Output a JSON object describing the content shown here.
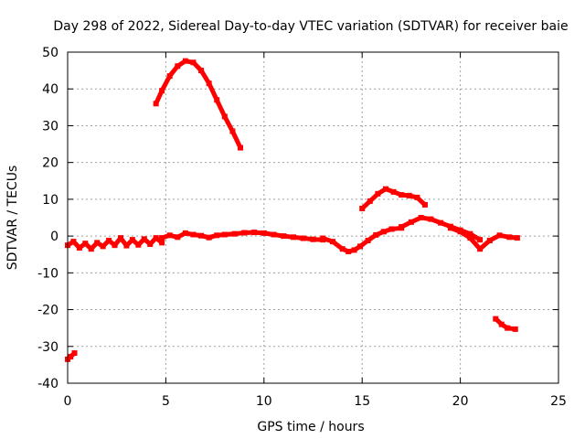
{
  "chart_data": {
    "type": "scatter",
    "title": "Day 298 of 2022, Sidereal Day-to-day VTEC variation (SDTVAR) for receiver baie",
    "xlabel": "GPS time / hours",
    "ylabel": "SDTVAR / TECUs",
    "xlim": [
      0,
      25
    ],
    "ylim": [
      -40,
      50
    ],
    "xticks": [
      0,
      5,
      10,
      15,
      20,
      25
    ],
    "yticks": [
      -40,
      -30,
      -20,
      -10,
      0,
      10,
      20,
      30,
      40,
      50
    ],
    "grid": true,
    "series_color": "#ff0000",
    "series": [
      {
        "name": "segment-early-negative",
        "x": [
          0.0,
          0.15,
          0.35
        ],
        "y": [
          -33.5,
          -32.8,
          -31.8
        ]
      },
      {
        "name": "segment-hump",
        "x": [
          4.5,
          4.8,
          5.2,
          5.6,
          6.0,
          6.4,
          6.8,
          7.2,
          7.6,
          8.0,
          8.4,
          8.8
        ],
        "y": [
          36,
          39.5,
          43.5,
          46.2,
          47.6,
          47.2,
          45,
          41.5,
          37,
          32.5,
          28.5,
          24
        ]
      },
      {
        "name": "segment-baseline-early",
        "x": [
          0.0,
          0.3,
          0.6,
          0.9,
          1.2,
          1.5,
          1.8,
          2.1,
          2.4,
          2.7,
          3.0,
          3.3,
          3.6,
          3.9,
          4.2,
          4.5,
          4.8
        ],
        "y": [
          -2.5,
          -1.5,
          -3.2,
          -2,
          -3.5,
          -1.8,
          -2.8,
          -1.2,
          -2.5,
          -0.5,
          -2.6,
          -1,
          -2.4,
          -0.8,
          -2.2,
          -0.5,
          -1.8
        ]
      },
      {
        "name": "segment-baseline-mid",
        "x": [
          4.8,
          5.2,
          5.6,
          6.0,
          6.4,
          6.8,
          7.2,
          7.6,
          8.0,
          8.5,
          9.0,
          9.5,
          10.0,
          10.5,
          11.0,
          11.5,
          12.0,
          12.5,
          13.0
        ],
        "y": [
          -0.5,
          0.2,
          -0.3,
          0.8,
          0.4,
          0.1,
          -0.4,
          0.2,
          0.4,
          0.6,
          0.9,
          1.0,
          0.8,
          0.4,
          0.0,
          -0.3,
          -0.6,
          -0.9,
          -1.0
        ]
      },
      {
        "name": "segment-dip",
        "x": [
          13.0,
          13.5,
          14.0,
          14.3,
          14.6,
          14.9,
          15.3,
          15.7,
          16.1,
          16.5,
          17.0
        ],
        "y": [
          -0.6,
          -1.5,
          -3.5,
          -4.2,
          -3.8,
          -2.8,
          -1.2,
          0.3,
          1.2,
          1.9,
          2.2
        ]
      },
      {
        "name": "segment-high-bump",
        "x": [
          15.0,
          15.4,
          15.8,
          16.2,
          16.6,
          17.0,
          17.4,
          17.8,
          18.2
        ],
        "y": [
          7.5,
          9.5,
          11.5,
          12.8,
          12.0,
          11.2,
          11.0,
          10.5,
          8.5
        ]
      },
      {
        "name": "segment-rise",
        "x": [
          17.0,
          17.5,
          18.0,
          18.5,
          19.0,
          19.5,
          20.0,
          20.5,
          21.0
        ],
        "y": [
          2.5,
          3.8,
          5.0,
          4.6,
          3.6,
          2.6,
          1.6,
          0.6,
          -1.0
        ]
      },
      {
        "name": "segment-late-baseline",
        "x": [
          19.5,
          20.0,
          20.5,
          21.0,
          21.5,
          22.0,
          22.5,
          22.9
        ],
        "y": [
          2.2,
          1.2,
          -0.5,
          -3.5,
          -1.2,
          0.2,
          -0.3,
          -0.5
        ]
      },
      {
        "name": "segment-late-negative",
        "x": [
          21.8,
          22.1,
          22.4,
          22.8
        ],
        "y": [
          -22.5,
          -24.0,
          -25.0,
          -25.3
        ]
      }
    ]
  }
}
